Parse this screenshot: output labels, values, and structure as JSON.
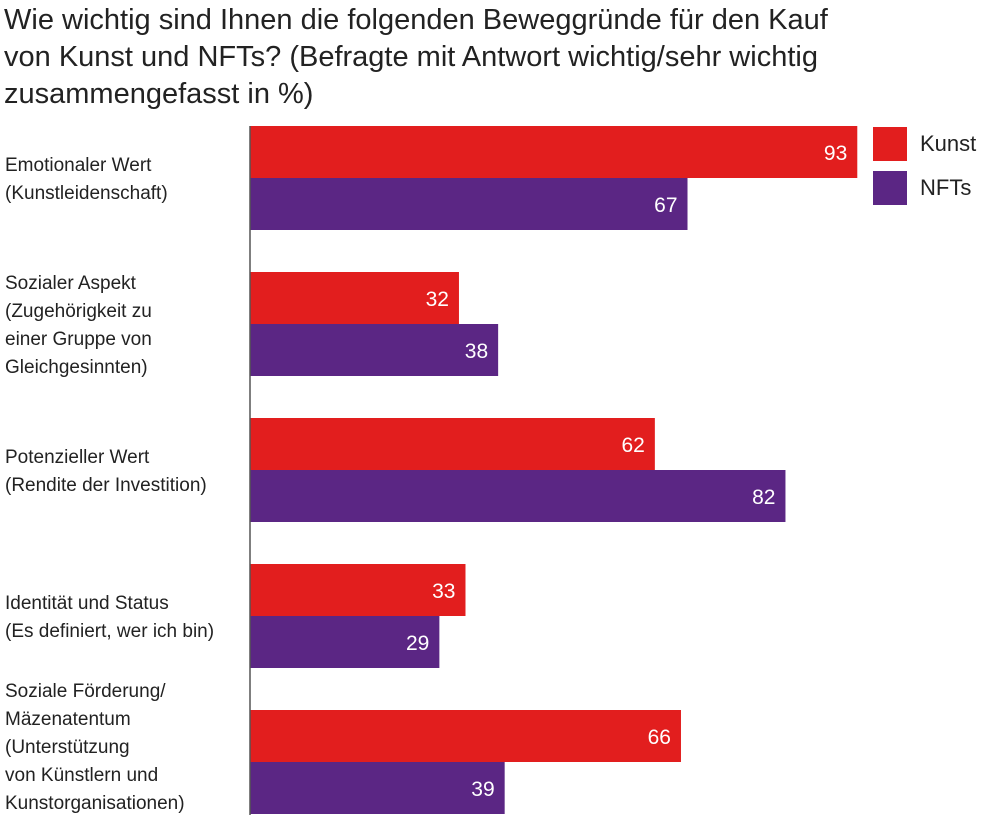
{
  "chart_data": {
    "type": "bar",
    "orientation": "horizontal",
    "title": "Wie wichtig sind Ihnen die folgenden Beweggründe für den Kauf\nvon Kunst und NFTs? (Befragte mit Antwort wichtig/sehr wichtig\nzusammengefasst in %)",
    "categories": [
      [
        "Emotionaler Wert",
        "(Kunstleidenschaft)"
      ],
      [
        "Sozialer Aspekt",
        "(Zugehörigkeit zu",
        "einer Gruppe von",
        "Gleichgesinnten)"
      ],
      [
        "Potenzieller Wert",
        "(Rendite der Investition)"
      ],
      [
        "Identität und Status",
        "(Es definiert, wer ich bin)"
      ],
      [
        "Soziale Förderung/",
        "Mäzenatentum",
        "(Unterstützung",
        "von Künstlern und",
        "Kunstorganisationen)"
      ]
    ],
    "series": [
      {
        "name": "Kunst",
        "color": "#e21e1e",
        "values": [
          93,
          32,
          62,
          33,
          66
        ]
      },
      {
        "name": "NFTs",
        "color": "#5b2684",
        "values": [
          67,
          38,
          82,
          29,
          39
        ]
      }
    ],
    "xlim": [
      0,
      100
    ],
    "grid": false,
    "legend_position": "top-right",
    "axis_color": "#555555"
  }
}
